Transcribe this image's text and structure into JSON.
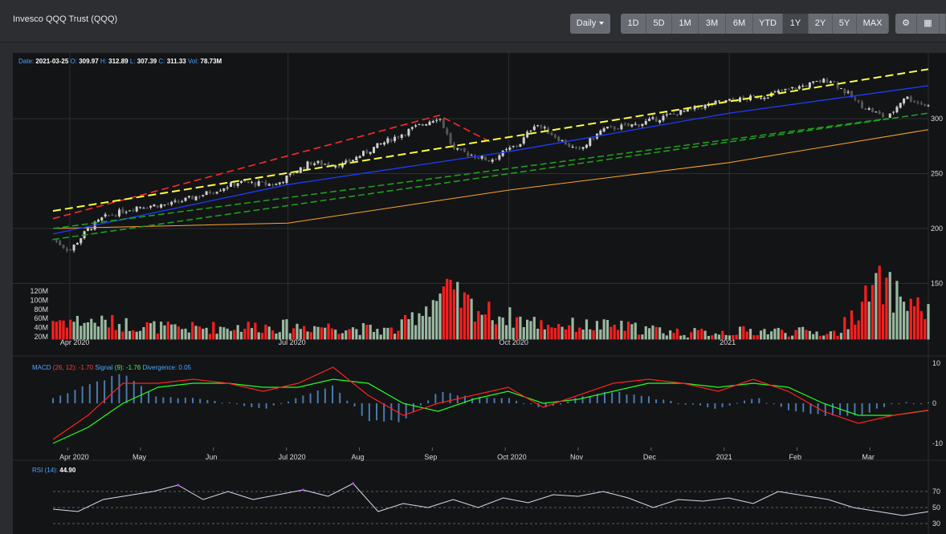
{
  "header": {
    "title": "Invesco QQQ Trust (QQQ)",
    "interval": "Daily",
    "ranges": [
      "1D",
      "5D",
      "1M",
      "3M",
      "6M",
      "YTD",
      "1Y",
      "2Y",
      "5Y",
      "MAX"
    ],
    "tool_icons": [
      "settings-icon",
      "calculator-icon"
    ]
  },
  "ohlc": {
    "date_label": "Date:",
    "date": "2021-03-25",
    "o_label": "O:",
    "o": "309.97",
    "h_label": "H:",
    "h": "312.89",
    "l_label": "L:",
    "l": "307.39",
    "c_label": "C:",
    "c": "311.33",
    "vol_label": "Vol:",
    "vol": "78.73M"
  },
  "macd": {
    "label": "MACD",
    "params": "(26, 12):",
    "value": "-1.70",
    "signal_label": "Signal",
    "signal_params": "(9):",
    "signal_value": "-1.76",
    "div_label": "Divergence:",
    "div_value": "0.05"
  },
  "rsi": {
    "label": "RSI",
    "params": "(14):",
    "value": "44.90"
  },
  "colors": {
    "up": "#9ab8a0",
    "down": "#ff1e1e",
    "yellow_trend": "#ffff3c",
    "red_trend": "#ff2a2a",
    "green_trend": "#1e9e1e",
    "blue_ma": "#1e3cff",
    "orange_ma": "#ffa52a",
    "macd_line": "#ff2020",
    "signal_line": "#22ff22",
    "macd_hist": "#4a7ab0",
    "rsi_line": "#e0d8f0",
    "rsi_high": "#c040ff"
  },
  "chart_data": [
    {
      "type": "candlestick",
      "title": "Invesco QQQ Trust (QQQ)",
      "price_ticks": [
        150,
        200,
        250,
        300
      ],
      "volume_ticks": [
        "20M",
        "40M",
        "60M",
        "80M",
        "100M",
        "120M"
      ],
      "x_labels_main": [
        "Apr 2020",
        "Jul 2020",
        "Oct 2020",
        "2021"
      ],
      "price_path": [
        [
          "2020-03-25",
          190
        ],
        [
          "2020-04-01",
          180
        ],
        [
          "2020-04-08",
          198
        ],
        [
          "2020-04-15",
          210
        ],
        [
          "2020-04-29",
          220
        ],
        [
          "2020-05-13",
          222
        ],
        [
          "2020-05-28",
          232
        ],
        [
          "2020-06-10",
          242
        ],
        [
          "2020-06-26",
          240
        ],
        [
          "2020-07-10",
          260
        ],
        [
          "2020-07-24",
          258
        ],
        [
          "2020-08-07",
          275
        ],
        [
          "2020-08-21",
          290
        ],
        [
          "2020-09-02",
          302
        ],
        [
          "2020-09-08",
          272
        ],
        [
          "2020-09-23",
          262
        ],
        [
          "2020-10-06",
          278
        ],
        [
          "2020-10-12",
          296
        ],
        [
          "2020-10-30",
          270
        ],
        [
          "2020-11-09",
          290
        ],
        [
          "2020-11-24",
          295
        ],
        [
          "2020-12-10",
          305
        ],
        [
          "2020-12-28",
          315
        ],
        [
          "2021-01-14",
          320
        ],
        [
          "2021-02-12",
          336
        ],
        [
          "2021-02-25",
          312
        ],
        [
          "2021-03-08",
          300
        ],
        [
          "2021-03-15",
          320
        ],
        [
          "2021-03-25",
          311.33
        ]
      ],
      "volume_path": [
        [
          "2020-03-25",
          60
        ],
        [
          "2020-04-15",
          55
        ],
        [
          "2020-05-15",
          40
        ],
        [
          "2020-06-15",
          45
        ],
        [
          "2020-07-15",
          45
        ],
        [
          "2020-08-15",
          35
        ],
        [
          "2020-09-04",
          125
        ],
        [
          "2020-09-20",
          80
        ],
        [
          "2020-10-15",
          50
        ],
        [
          "2020-11-15",
          45
        ],
        [
          "2020-12-15",
          30
        ],
        [
          "2021-01-15",
          35
        ],
        [
          "2021-02-15",
          30
        ],
        [
          "2021-02-26",
          100
        ],
        [
          "2021-03-04",
          140
        ],
        [
          "2021-03-25",
          78.73
        ]
      ],
      "yellow_trend": [
        [
          "2020-03-25",
          216
        ],
        [
          "2021-03-25",
          345
        ]
      ],
      "red_trend": [
        [
          "2020-03-25",
          209
        ],
        [
          "2020-09-02",
          303
        ],
        [
          "2020-09-24",
          278
        ]
      ],
      "green_trend_a": [
        [
          "2020-03-25",
          200
        ],
        [
          "2021-03-08",
          300
        ]
      ],
      "green_trend_b": [
        [
          "2020-03-25",
          190
        ],
        [
          "2021-03-25",
          305
        ]
      ],
      "blue_ma": [
        [
          "2020-03-25",
          195
        ],
        [
          "2020-07-01",
          240
        ],
        [
          "2020-10-01",
          270
        ],
        [
          "2021-01-01",
          305
        ],
        [
          "2021-03-25",
          330
        ]
      ],
      "orange_ma": [
        [
          "2020-03-25",
          200
        ],
        [
          "2020-07-01",
          205
        ],
        [
          "2020-10-01",
          235
        ],
        [
          "2021-01-01",
          260
        ],
        [
          "2021-03-25",
          290
        ]
      ]
    },
    {
      "type": "line",
      "title": "MACD",
      "y_ticks": [
        10,
        0,
        -10
      ],
      "x_labels": [
        "Apr 2020",
        "May",
        "Jun",
        "Jul 2020",
        "Aug",
        "Sep",
        "Oct 2020",
        "Nov",
        "Dec",
        "2021",
        "Feb",
        "Mar"
      ],
      "macd": [
        -9,
        -3,
        5,
        5,
        6,
        5,
        3,
        5,
        9,
        2,
        -3,
        0,
        2,
        4,
        -1,
        2,
        5,
        6,
        5,
        3,
        6,
        3,
        -2,
        -5,
        -3,
        -1.7
      ],
      "signal": [
        -10,
        -6,
        0,
        4,
        5,
        5,
        4,
        4,
        6,
        5,
        0,
        -2,
        1,
        3,
        0,
        1,
        3,
        5,
        5,
        4,
        5,
        4,
        0,
        -3,
        -3,
        -1.76
      ]
    },
    {
      "type": "line",
      "title": "RSI",
      "y_ticks": [
        70,
        50,
        30
      ],
      "rsi": [
        48,
        45,
        60,
        65,
        70,
        78,
        60,
        70,
        60,
        66,
        72,
        64,
        80,
        45,
        55,
        50,
        60,
        50,
        62,
        56,
        66,
        64,
        70,
        62,
        50,
        60,
        58,
        62,
        55,
        70,
        65,
        60,
        50,
        45,
        40,
        44.9
      ]
    }
  ]
}
